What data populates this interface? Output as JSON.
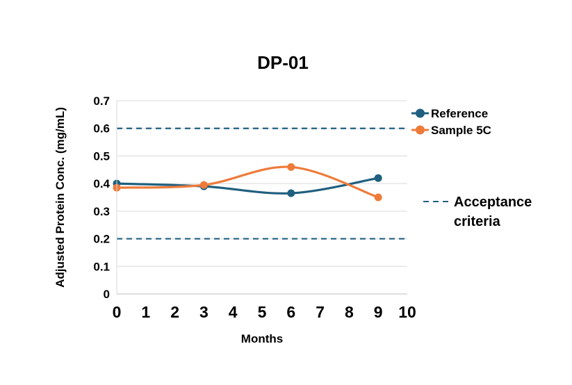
{
  "chart_data": {
    "type": "line",
    "title": "DP-01",
    "xlabel": "Months",
    "ylabel": "Adjusted Protein Conc. (mg/mL)",
    "xlim": [
      0,
      10
    ],
    "ylim": [
      0,
      0.7
    ],
    "x_ticks": [
      "0",
      "1",
      "2",
      "3",
      "4",
      "5",
      "6",
      "7",
      "8",
      "9",
      "10"
    ],
    "y_ticks": [
      "0",
      "0.1",
      "0.2",
      "0.3",
      "0.4",
      "0.5",
      "0.6",
      "0.7"
    ],
    "grid": true,
    "legend_position": "right",
    "series": [
      {
        "name": "Reference",
        "color": "#1f5f7f",
        "smooth": true,
        "points": [
          {
            "x": 0,
            "y": 0.4
          },
          {
            "x": 3,
            "y": 0.39
          },
          {
            "x": 6,
            "y": 0.365
          },
          {
            "x": 9,
            "y": 0.42
          }
        ]
      },
      {
        "name": "Sample 5C",
        "color": "#ee7b3a",
        "smooth": true,
        "points": [
          {
            "x": 0,
            "y": 0.385
          },
          {
            "x": 3,
            "y": 0.395
          },
          {
            "x": 6,
            "y": 0.46
          },
          {
            "x": 9,
            "y": 0.35
          }
        ]
      }
    ],
    "reference_lines": [
      {
        "name": "Acceptance criteria",
        "y": 0.6,
        "style": "dashed",
        "color": "#1f5f7f"
      },
      {
        "name": "Acceptance criteria",
        "y": 0.2,
        "style": "dashed",
        "color": "#1f5f7f"
      }
    ],
    "acceptance_legend": {
      "line1": "Acceptance",
      "line2": "criteria"
    }
  }
}
